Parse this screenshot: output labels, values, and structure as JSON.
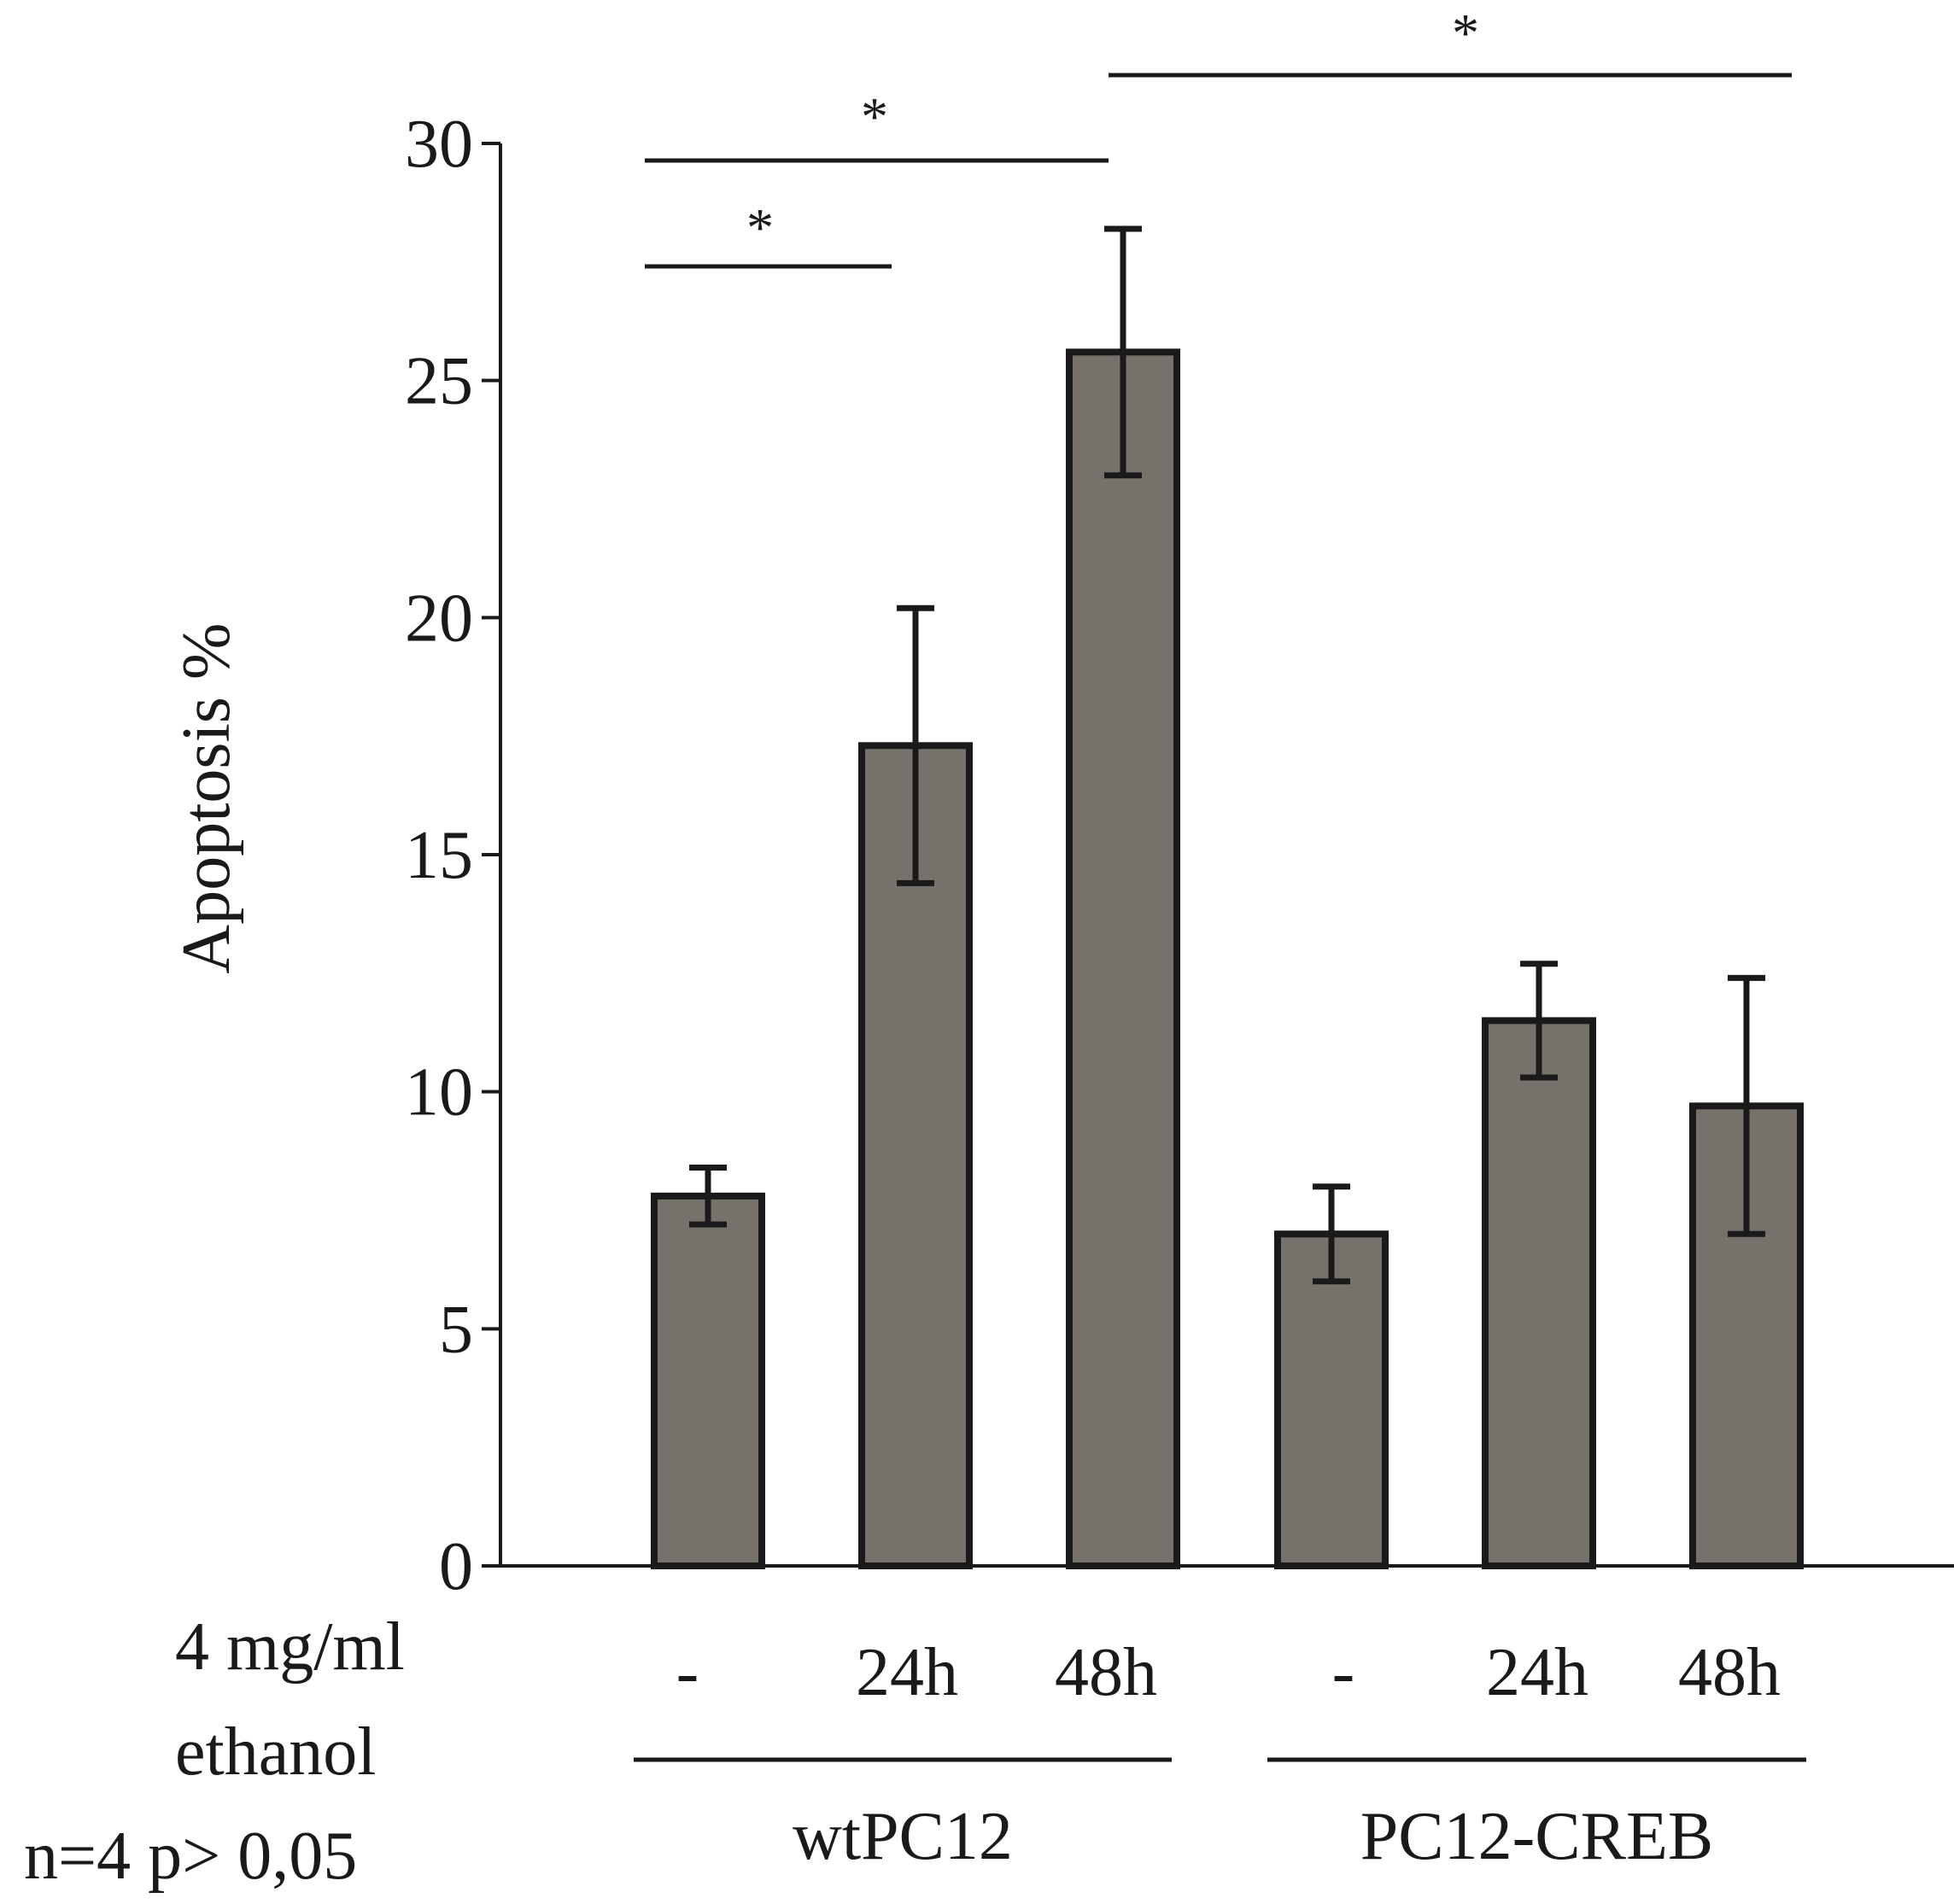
{
  "chart_data": {
    "type": "bar",
    "title": "",
    "xlabel": "",
    "ylabel": "Apoptosis %",
    "ylim": [
      0,
      30
    ],
    "yticks": [
      0,
      5,
      10,
      15,
      20,
      25,
      30
    ],
    "row_label_line1": "4 mg/ml",
    "row_label_line2": "ethanol",
    "stats_note": "n=4 p> 0,05",
    "categories": [
      "-",
      "24h",
      "48h",
      "-",
      "24h",
      "48h"
    ],
    "values": [
      7.8,
      17.3,
      25.6,
      7.0,
      11.5,
      9.7
    ],
    "error": [
      0.6,
      2.9,
      2.6,
      1.0,
      1.2,
      2.7
    ],
    "groups": [
      {
        "label": "wtPC12",
        "start": 0,
        "end": 2
      },
      {
        "label": "PC12-CREB",
        "start": 3,
        "end": 5
      }
    ],
    "significance": [
      {
        "from": 0,
        "to": 1,
        "label": "*",
        "level": 0
      },
      {
        "from": 0,
        "to": 2,
        "label": "*",
        "level": 1
      },
      {
        "from": 2,
        "to": 5,
        "label": "*",
        "level": 2
      }
    ],
    "colors": {
      "bar": "#77716b",
      "stroke": "#1a1a1a"
    }
  }
}
